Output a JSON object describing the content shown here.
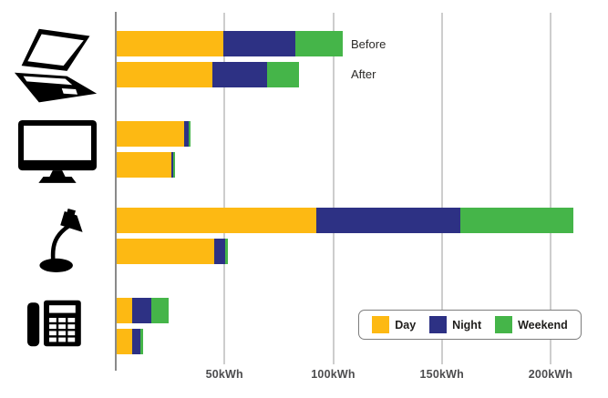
{
  "chart_data": {
    "type": "bar",
    "orientation": "horizontal",
    "stacked": true,
    "unit": "kWh",
    "title": "",
    "xlabel": "",
    "ylabel": "",
    "x_axis": {
      "min": 0,
      "max": 223,
      "ticks": [
        {
          "value": 50,
          "label": "50kWh"
        },
        {
          "value": 100,
          "label": "100kWh"
        },
        {
          "value": 150,
          "label": "150kWh"
        },
        {
          "value": 200,
          "label": "200kWh"
        }
      ],
      "grid": true
    },
    "series": [
      {
        "name": "Day",
        "color": "#FDB913"
      },
      {
        "name": "Night",
        "color": "#2D3184"
      },
      {
        "name": "Weekend",
        "color": "#45B549"
      }
    ],
    "groups": [
      {
        "category": "laptop",
        "icon": "laptop-icon",
        "bars": [
          {
            "label": "Before",
            "values": {
              "Day": 49,
              "Night": 33,
              "Weekend": 22
            }
          },
          {
            "label": "After",
            "values": {
              "Day": 44,
              "Night": 25,
              "Weekend": 15
            }
          }
        ]
      },
      {
        "category": "monitor",
        "icon": "monitor-icon",
        "bars": [
          {
            "label": "Before",
            "values": {
              "Day": 31,
              "Night": 2,
              "Weekend": 1
            }
          },
          {
            "label": "After",
            "values": {
              "Day": 25,
              "Night": 1,
              "Weekend": 1
            }
          }
        ]
      },
      {
        "category": "desk-lamp",
        "icon": "desk-lamp-icon",
        "bars": [
          {
            "label": "Before",
            "values": {
              "Day": 92,
              "Night": 66,
              "Weekend": 52
            }
          },
          {
            "label": "After",
            "values": {
              "Day": 45,
              "Night": 5,
              "Weekend": 1
            }
          }
        ]
      },
      {
        "category": "telephone",
        "icon": "telephone-icon",
        "bars": [
          {
            "label": "Before",
            "values": {
              "Day": 7,
              "Night": 9,
              "Weekend": 8
            }
          },
          {
            "label": "After",
            "values": {
              "Day": 7,
              "Night": 4,
              "Weekend": 1
            }
          }
        ]
      }
    ],
    "bar_annotations": {
      "before_label": "Before",
      "after_label": "After"
    },
    "legend": {
      "position": "bottom-right",
      "items": [
        {
          "label": "Day",
          "color": "#FDB913"
        },
        {
          "label": "Night",
          "color": "#2D3184"
        },
        {
          "label": "Weekend",
          "color": "#45B549"
        }
      ]
    }
  },
  "colors": {
    "background": "#FFFFFF",
    "gridline": "#CDCDCD",
    "axis_line": "#8A8A8A",
    "annotation_text": "#2B2A28",
    "tick_text": "#4D4D4F",
    "legend_border": "#7D7D7D",
    "legend_text": "#1F1D1B",
    "icon": "#000000"
  }
}
